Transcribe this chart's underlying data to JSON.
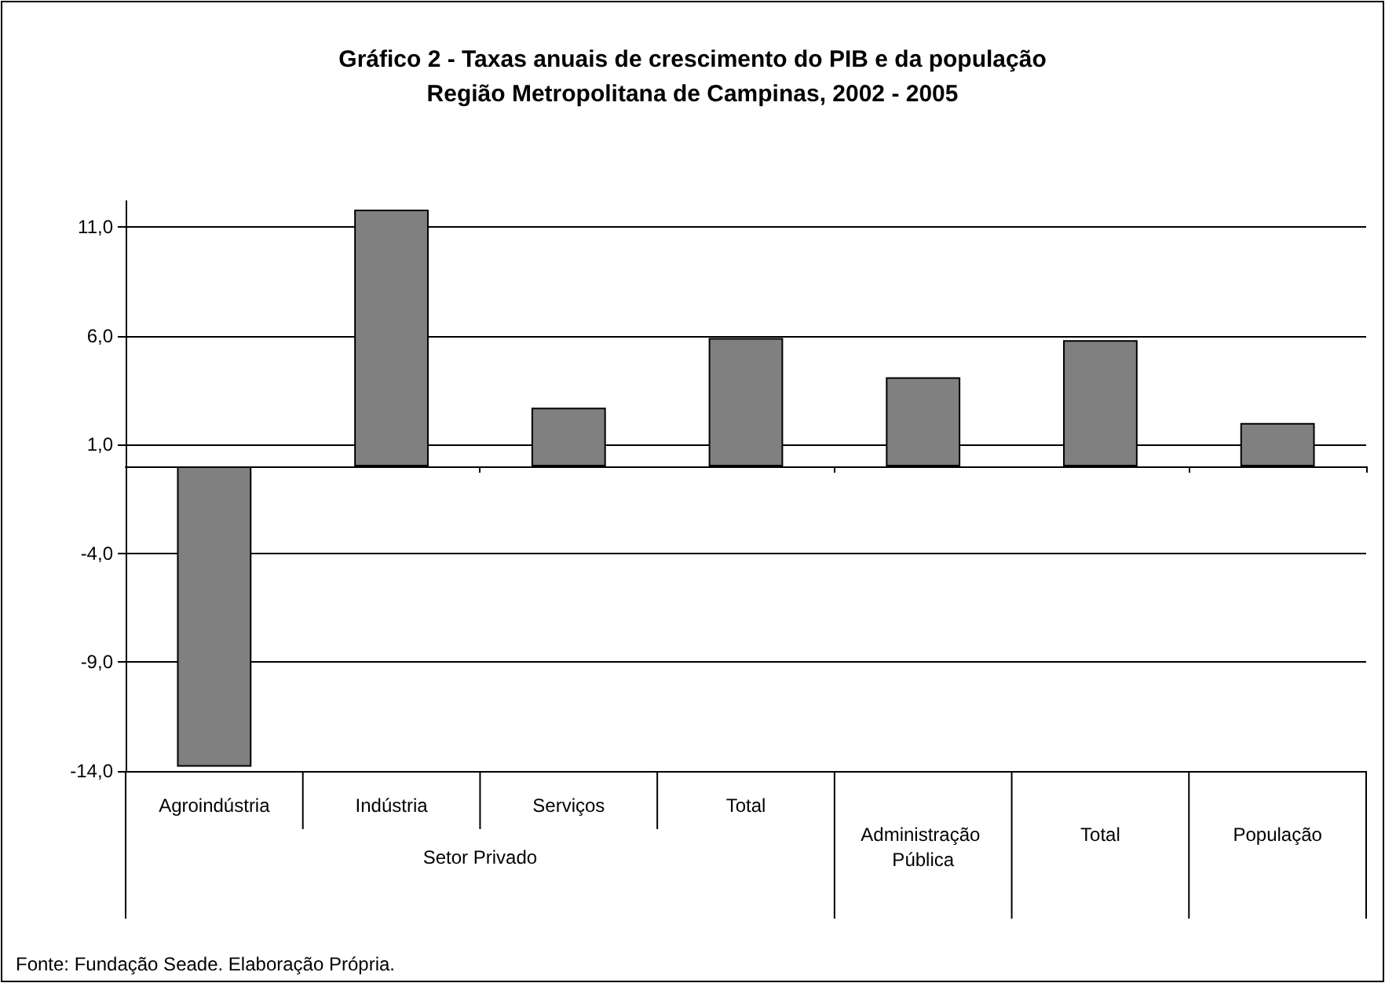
{
  "chart_data": {
    "type": "bar",
    "title": "Gráfico 2 - Taxas anuais de crescimento do PIB e da população\nRegião Metropolitana de Campinas, 2002 - 2005",
    "categories": [
      "Agroindústria",
      "Indústria",
      "Serviços",
      "Total",
      "Administração Pública",
      "Total",
      "População"
    ],
    "values": [
      -13.8,
      11.8,
      2.7,
      5.9,
      4.1,
      5.8,
      2.0
    ],
    "color": "#808080",
    "ylim": [
      -14,
      12.2
    ],
    "yticks": [
      {
        "value": -14,
        "label": "-14,0"
      },
      {
        "value": -9,
        "label": "-9,0"
      },
      {
        "value": -4,
        "label": "-4,0"
      },
      {
        "value": 1,
        "label": "1,0"
      },
      {
        "value": 6,
        "label": "6,0"
      },
      {
        "value": 11,
        "label": "11,0"
      }
    ],
    "grid": "y",
    "annotations": [
      "Setor Privado",
      "Fonte: Fundação Seade. Elaboração Própria."
    ]
  }
}
